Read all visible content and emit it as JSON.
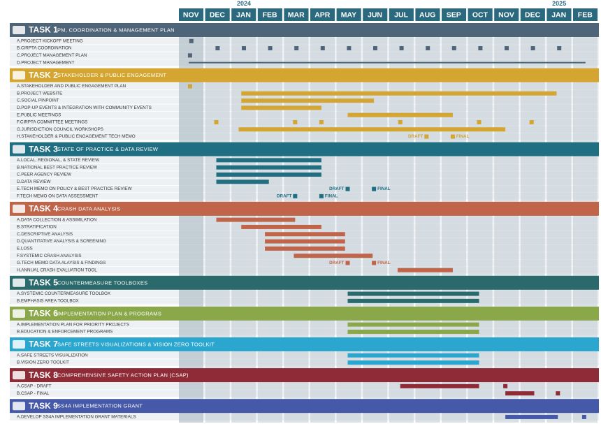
{
  "chart_data": {
    "type": "gantt",
    "months": [
      "NOV",
      "DEC",
      "JAN",
      "FEB",
      "MAR",
      "APR",
      "MAY",
      "JUN",
      "JUL",
      "AUG",
      "SEP",
      "OCT",
      "NOV",
      "DEC",
      "JAN",
      "FEB"
    ],
    "years": [
      null,
      null,
      "2024",
      null,
      null,
      null,
      null,
      null,
      null,
      null,
      null,
      null,
      null,
      null,
      "2025",
      null
    ],
    "tasks": [
      {
        "number": "TASK 1",
        "title": "PM, COORDINATION & MANAGEMENT PLAN",
        "color": "#4e6478",
        "rows": [
          {
            "label": "A.PROJECT KICKOFF MEETING",
            "bars": [],
            "milestones": [
              {
                "at": 0.5
              }
            ]
          },
          {
            "label": "B.CIRPTA COORDINATION",
            "bars": [],
            "milestones": [
              {
                "at": 1.5
              },
              {
                "at": 2.5
              },
              {
                "at": 3.5
              },
              {
                "at": 4.5
              },
              {
                "at": 5.5
              },
              {
                "at": 6.5
              },
              {
                "at": 7.5
              },
              {
                "at": 8.5
              },
              {
                "at": 9.5
              },
              {
                "at": 10.5
              },
              {
                "at": 11.5
              },
              {
                "at": 12.5
              },
              {
                "at": 13.5
              },
              {
                "at": 14.5
              }
            ]
          },
          {
            "label": "C.PROJECT MANAGEMENT PLAN",
            "bars": [],
            "milestones": [
              {
                "at": 0.45
              }
            ]
          },
          {
            "label": "D.PROJECT MANAGEMENT",
            "bars": [
              {
                "start": 0.4,
                "end": 15.5,
                "thin": true
              }
            ],
            "milestones": []
          }
        ]
      },
      {
        "number": "TASK 2",
        "title": "STAKEHOLDER & PUBLIC ENGAGEMENT",
        "color": "#d4a530",
        "rows": [
          {
            "label": "A.STAKEHOLDER AND PUBLIC ENGAGEMENT PLAN",
            "bars": [],
            "milestones": [
              {
                "at": 0.45
              }
            ]
          },
          {
            "label": "B.PROJECT WEBSITE",
            "bars": [
              {
                "start": 2.4,
                "end": 14.4
              }
            ],
            "milestones": []
          },
          {
            "label": "C.SOCIAL PINPOINT",
            "bars": [
              {
                "start": 2.4,
                "end": 7.45
              }
            ],
            "milestones": []
          },
          {
            "label": "D.POP-UP EVENTS & INTEGRATION WITH COMMUNITY EVENTS",
            "bars": [
              {
                "start": 2.4,
                "end": 5.45
              }
            ],
            "milestones": []
          },
          {
            "label": "E.PUBLIC MEETINGS",
            "bars": [
              {
                "start": 6.45,
                "end": 10.45
              }
            ],
            "milestones": []
          },
          {
            "label": "F.CIRPTA COMMITTEE MEETINGS",
            "bars": [],
            "milestones": [
              {
                "at": 1.45
              },
              {
                "at": 4.45
              },
              {
                "at": 5.45
              },
              {
                "at": 8.45
              },
              {
                "at": 11.45
              },
              {
                "at": 13.45
              }
            ]
          },
          {
            "label": "G.JURISDICTION COUNCIL WORKSHOPS",
            "bars": [
              {
                "start": 2.3,
                "end": 12.45
              }
            ],
            "milestones": []
          },
          {
            "label": "H.STAKEHOLDER & PUBLIC ENGAGEMENT TECH MEMO",
            "bars": [],
            "milestones": [
              {
                "at": 9.45,
                "label": "DRAFT",
                "side": "left"
              },
              {
                "at": 10.45,
                "label": "FINAL",
                "side": "right"
              }
            ]
          }
        ]
      },
      {
        "number": "TASK 3",
        "title": "STATE OF PRACTICE & DATA REVIEW",
        "color": "#1f6e82",
        "rows": [
          {
            "label": "A.LOCAL, REGIONAL, & STATE REVIEW",
            "bars": [
              {
                "start": 1.45,
                "end": 5.45
              }
            ],
            "milestones": []
          },
          {
            "label": "B.NATIONAL BEST PRACTICE REVIEW",
            "bars": [
              {
                "start": 1.45,
                "end": 5.45
              }
            ],
            "milestones": []
          },
          {
            "label": "C.PEER AGENCY REVIEW",
            "bars": [
              {
                "start": 1.45,
                "end": 5.45
              }
            ],
            "milestones": []
          },
          {
            "label": "D.DATA REVIEW",
            "bars": [
              {
                "start": 1.45,
                "end": 3.45
              }
            ],
            "milestones": []
          },
          {
            "label": "E.TECH MEMO ON POLICY & BEST PRACTICE REVIEW",
            "bars": [],
            "milestones": [
              {
                "at": 6.45,
                "label": "DRAFT",
                "side": "left"
              },
              {
                "at": 7.45,
                "label": "FINAL",
                "side": "right"
              }
            ]
          },
          {
            "label": "F.TECH MEMO ON DATA ASSESSMENT",
            "bars": [],
            "milestones": [
              {
                "at": 4.45,
                "label": "DRAFT",
                "side": "left"
              },
              {
                "at": 5.45,
                "label": "FINAL",
                "side": "right"
              }
            ]
          }
        ]
      },
      {
        "number": "TASK 4",
        "title": "CRASH DATA ANALYSIS",
        "color": "#c0654a",
        "rows": [
          {
            "label": "A.DATA COLLECTION & ASSIMILATION",
            "bars": [
              {
                "start": 1.45,
                "end": 4.45
              }
            ],
            "milestones": []
          },
          {
            "label": "B.STRATIFICATION",
            "bars": [
              {
                "start": 2.4,
                "end": 5.45
              }
            ],
            "milestones": []
          },
          {
            "label": "C.DESCRIPTIVE ANALYSIS",
            "bars": [
              {
                "start": 3.3,
                "end": 6.35
              }
            ],
            "milestones": []
          },
          {
            "label": "D.QUANTITATIVE ANALYSIS & SCREENING",
            "bars": [
              {
                "start": 3.3,
                "end": 6.35
              }
            ],
            "milestones": []
          },
          {
            "label": "E.LOSS",
            "bars": [
              {
                "start": 3.3,
                "end": 6.35
              }
            ],
            "milestones": []
          },
          {
            "label": "F.SYSTEMIC CRASH ANALYSIS",
            "bars": [
              {
                "start": 4.4,
                "end": 7.4
              }
            ],
            "milestones": []
          },
          {
            "label": "G.TECH MEMO DATA ALAYSIS & FINDINGS",
            "bars": [],
            "milestones": [
              {
                "at": 6.45,
                "label": "DRAFT",
                "side": "left"
              },
              {
                "at": 7.45,
                "label": "FINAL",
                "side": "right"
              }
            ]
          },
          {
            "label": "H.ANNUAL CRASH EVALUATION TOOL",
            "bars": [
              {
                "start": 8.35,
                "end": 10.45
              }
            ],
            "milestones": []
          }
        ]
      },
      {
        "number": "TASK 5",
        "title": "COUNTERMEASURE TOOLBOXES",
        "color": "#2a6a6c",
        "rows": [
          {
            "label": "A.SYSTEMIC COUNTERMEASURE TOOLBOX",
            "bars": [
              {
                "start": 6.45,
                "end": 11.45
              }
            ],
            "milestones": []
          },
          {
            "label": "B.EMPHASIS AREA TOOLBOX",
            "bars": [
              {
                "start": 6.45,
                "end": 11.45
              }
            ],
            "milestones": []
          }
        ]
      },
      {
        "number": "TASK 6",
        "title": "IMPLEMENTATION PLAN & PROGRAMS",
        "color": "#8aa84a",
        "rows": [
          {
            "label": "A.IMPLEMENTATION PLAN FOR PRIORITY PROJECTS",
            "bars": [
              {
                "start": 6.45,
                "end": 11.45
              }
            ],
            "milestones": []
          },
          {
            "label": "B.EDUCATION & ENFORCEMENT PROGRAMS",
            "bars": [
              {
                "start": 6.45,
                "end": 11.45
              }
            ],
            "milestones": []
          }
        ]
      },
      {
        "number": "TASK 7",
        "title": "SAFE STREETS VISUALIZATIONS & VISION ZERO TOOLKIT",
        "color": "#2aa6cf",
        "rows": [
          {
            "label": "A.SAFE STREETS VISUALIZATION",
            "bars": [
              {
                "start": 6.45,
                "end": 11.45
              }
            ],
            "milestones": []
          },
          {
            "label": "B.VISION ZERO TOOLKIT",
            "bars": [
              {
                "start": 6.45,
                "end": 11.45
              }
            ],
            "milestones": []
          }
        ]
      },
      {
        "number": "TASK 8",
        "title": "COMPREHENSIVE SAFETY ACTION PLAN (CSAP)",
        "color": "#8e2b36",
        "rows": [
          {
            "label": "A.CSAP - DRAFT",
            "bars": [
              {
                "start": 8.45,
                "end": 11.45
              }
            ],
            "milestones": [
              {
                "at": 12.45
              }
            ]
          },
          {
            "label": "B.CSAP - FINAL",
            "bars": [
              {
                "start": 12.45,
                "end": 13.55
              }
            ],
            "milestones": [
              {
                "at": 14.45
              }
            ]
          }
        ]
      },
      {
        "number": "TASK 9",
        "title": "SS4A IMPLEMENTATION GRANT",
        "color": "#4659a8",
        "rows": [
          {
            "label": "A.DEVELOP SS4A IMPLEMENTATION GRANT MATERIALS",
            "bars": [
              {
                "start": 12.45,
                "end": 14.45
              }
            ],
            "milestones": [
              {
                "at": 15.45
              }
            ]
          }
        ]
      }
    ]
  }
}
